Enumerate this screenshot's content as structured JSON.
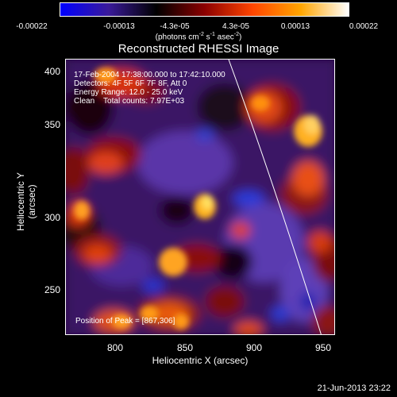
{
  "colorbar": {
    "ticks": [
      "-0.00022",
      "-0.00013",
      "-4.3e-05",
      "4.3e-05",
      "0.00013",
      "0.00022"
    ],
    "units_prefix": "(photons cm",
    "units_exp1": "-2",
    "units_mid": " s",
    "units_exp2": "-1",
    "units_mid2": " asec",
    "units_exp3": "-2",
    "units_suffix": ")",
    "colors": [
      "#0000ff",
      "#3a1a9a",
      "#000000",
      "#8b0000",
      "#ff4500",
      "#ffa500",
      "#ffffff"
    ]
  },
  "title": "Reconstructed RHESSI Image",
  "overlay": {
    "time": "17-Feb-2004 17:38:00.000 to 17:42:10.000",
    "detectors": "Detectors: 4F 5F 6F 7F 8F, Att 0",
    "energy": "Energy Range: 12.0 - 25.0 keV",
    "clean": "Clean    Total counts: 7.97E+03",
    "peak": "Position of Peak = [867,306]"
  },
  "axes": {
    "xlabel": "Heliocentric X (arcsec)",
    "ylabel": "Heliocentric Y (arcsec)",
    "xticks": [
      "800",
      "850",
      "900",
      "950"
    ],
    "yticks": [
      "400",
      "350",
      "300",
      "250"
    ]
  },
  "datestamp": "21-Jun-2013 23:22"
}
